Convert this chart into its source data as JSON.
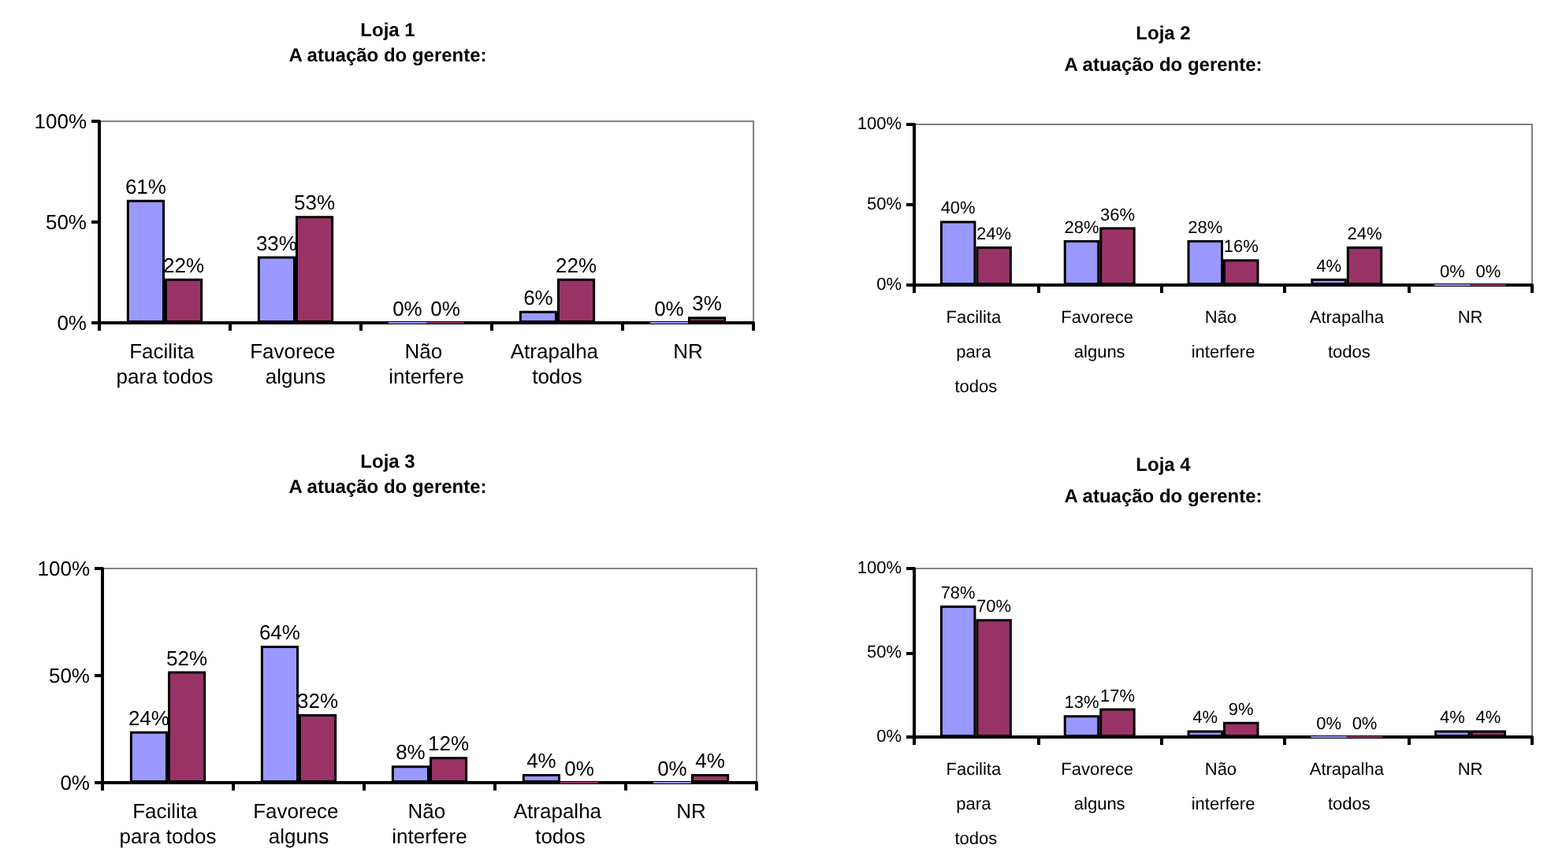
{
  "chart_data": [
    {
      "type": "bar",
      "title": "Loja 1",
      "subtitle": "A atuação do gerente:",
      "categories": [
        "Facilita para todos",
        "Favorece alguns",
        "Não interfere",
        "Atrapalha todos",
        "NR"
      ],
      "series": [
        {
          "color": "#9999ff",
          "values": [
            61,
            33,
            0,
            6,
            0
          ],
          "value_labels": [
            "61%",
            "33%",
            "0%",
            "6%",
            "0%"
          ]
        },
        {
          "color": "#993366",
          "values": [
            22,
            53,
            0,
            22,
            3
          ],
          "value_labels": [
            "22%",
            "53%",
            "0%",
            "22%",
            "3%"
          ]
        }
      ],
      "ylim": [
        0,
        100
      ],
      "yticks": [
        {
          "value": 0,
          "label": "0%"
        },
        {
          "value": 50,
          "label": "50%"
        },
        {
          "value": 100,
          "label": "100%"
        }
      ],
      "grid": false
    },
    {
      "type": "bar",
      "title": "Loja 2",
      "subtitle": "A atuação do gerente:",
      "categories": [
        "Facilita para todos",
        "Favorece alguns",
        "Não interfere",
        "Atrapalha todos",
        "NR"
      ],
      "series": [
        {
          "color": "#9999ff",
          "values": [
            40,
            28,
            28,
            4,
            0
          ],
          "value_labels": [
            "40%",
            "28%",
            "28%",
            "4%",
            "0%"
          ]
        },
        {
          "color": "#993366",
          "values": [
            24,
            36,
            16,
            24,
            0
          ],
          "value_labels": [
            "24%",
            "36%",
            "16%",
            "24%",
            "0%"
          ]
        }
      ],
      "ylim": [
        0,
        100
      ],
      "yticks": [
        {
          "value": 0,
          "label": "0%"
        },
        {
          "value": 50,
          "label": "50%"
        },
        {
          "value": 100,
          "label": "100%"
        }
      ],
      "grid": false
    },
    {
      "type": "bar",
      "title": "Loja 3",
      "subtitle": "A atuação do gerente:",
      "categories": [
        "Facilita para todos",
        "Favorece alguns",
        "Não interfere",
        "Atrapalha todos",
        "NR"
      ],
      "series": [
        {
          "color": "#9999ff",
          "values": [
            24,
            64,
            8,
            4,
            0
          ],
          "value_labels": [
            "24%",
            "64%",
            "8%",
            "4%",
            "0%"
          ]
        },
        {
          "color": "#993366",
          "values": [
            52,
            32,
            12,
            0,
            4
          ],
          "value_labels": [
            "52%",
            "32%",
            "12%",
            "0%",
            "4%"
          ]
        }
      ],
      "ylim": [
        0,
        100
      ],
      "yticks": [
        {
          "value": 0,
          "label": "0%"
        },
        {
          "value": 50,
          "label": "50%"
        },
        {
          "value": 100,
          "label": "100%"
        }
      ],
      "grid": false
    },
    {
      "type": "bar",
      "title": "Loja 4",
      "subtitle": "A atuação do gerente:",
      "categories": [
        "Facilita para todos",
        "Favorece alguns",
        "Não interfere",
        "Atrapalha todos",
        "NR"
      ],
      "series": [
        {
          "color": "#9999ff",
          "values": [
            78,
            13,
            4,
            0,
            4
          ],
          "value_labels": [
            "78%",
            "13%",
            "4%",
            "0%",
            "4%"
          ]
        },
        {
          "color": "#993366",
          "values": [
            70,
            17,
            9,
            0,
            4
          ],
          "value_labels": [
            "70%",
            "17%",
            "9%",
            "0%",
            "4%"
          ]
        }
      ],
      "ylim": [
        0,
        100
      ],
      "yticks": [
        {
          "value": 0,
          "label": "0%"
        },
        {
          "value": 50,
          "label": "50%"
        },
        {
          "value": 100,
          "label": "100%"
        }
      ],
      "grid": false
    }
  ]
}
